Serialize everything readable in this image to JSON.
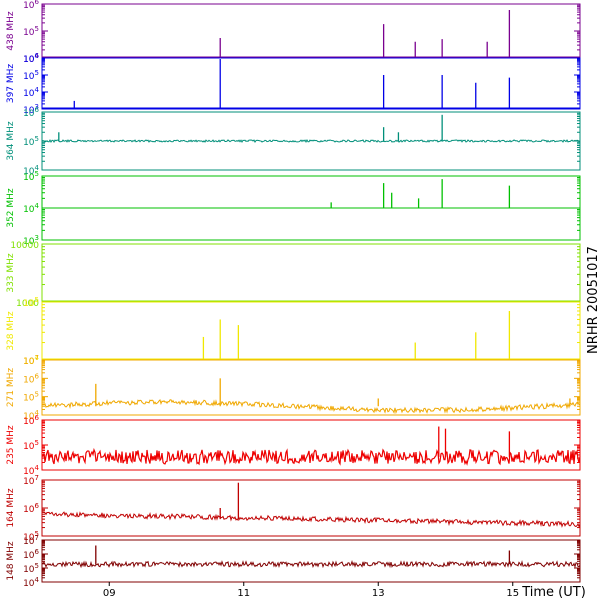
{
  "chart_data": {
    "type": "line",
    "title": "",
    "station_label": "NRHR 20051017",
    "xlabel": "Time (UT)",
    "x_ticks": [
      "09",
      "11",
      "13",
      "15"
    ],
    "x_tick_values": [
      9,
      11,
      13,
      15
    ],
    "xlim": [
      8.0,
      16.0
    ],
    "y_scale": "log",
    "panels": [
      {
        "name": "438 MHz",
        "color": "#7a008f",
        "tick_labels": [
          "10^4",
          "10^5",
          "10^6"
        ],
        "ylim": [
          10000,
          1000000
        ],
        "baseline": 10000,
        "spikes": [
          [
            10.65,
            55000
          ],
          [
            13.08,
            180000
          ],
          [
            13.55,
            40000
          ],
          [
            13.95,
            50000
          ],
          [
            14.62,
            40000
          ],
          [
            14.95,
            600000
          ]
        ]
      },
      {
        "name": "397 MHz",
        "color": "#0000e6",
        "tick_labels": [
          "10^3",
          "10^4",
          "10^5",
          "10^6"
        ],
        "ylim": [
          1000,
          1000000
        ],
        "baseline": 1000,
        "spikes": [
          [
            8.48,
            3000
          ],
          [
            10.65,
            900000
          ],
          [
            13.08,
            100000
          ],
          [
            13.95,
            100000
          ],
          [
            14.45,
            35000
          ],
          [
            14.95,
            70000
          ]
        ]
      },
      {
        "name": "364 MHz",
        "color": "#008f7a",
        "tick_labels": [
          "10^4",
          "10^5",
          "10^6"
        ],
        "ylim": [
          10000,
          1000000
        ],
        "baseline": 100000,
        "spikes": [
          [
            8.25,
            200000
          ],
          [
            13.08,
            300000
          ],
          [
            13.3,
            200000
          ],
          [
            13.95,
            800000
          ]
        ]
      },
      {
        "name": "352 MHz",
        "color": "#00c000",
        "tick_labels": [
          "10^3",
          "10^4",
          "10^5"
        ],
        "ylim": [
          1000,
          100000
        ],
        "baseline": 10000,
        "spikes": [
          [
            12.3,
            15000
          ],
          [
            13.08,
            60000
          ],
          [
            13.2,
            30000
          ],
          [
            13.6,
            20000
          ],
          [
            13.95,
            80000
          ],
          [
            14.95,
            50000
          ]
        ]
      },
      {
        "name": "333 MHz",
        "color": "#80e000",
        "tick_labels": [
          "1000",
          "10000"
        ],
        "ylim": [
          100,
          10000
        ],
        "baseline": 100,
        "spikes": []
      },
      {
        "name": "328 MHz",
        "color": "#f0e800",
        "tick_labels": [
          "10^4",
          "10^5"
        ],
        "ylim": [
          10000,
          100000
        ],
        "baseline": 10000,
        "spikes": [
          [
            10.4,
            25000
          ],
          [
            10.65,
            50000
          ],
          [
            10.92,
            40000
          ],
          [
            13.55,
            20000
          ],
          [
            14.45,
            30000
          ],
          [
            14.95,
            70000
          ]
        ]
      },
      {
        "name": "271 MHz",
        "color": "#f0a800",
        "tick_labels": [
          "10^4",
          "10^5",
          "10^6",
          "10^7"
        ],
        "ylim": [
          10000,
          10000000
        ],
        "baseline": 30000,
        "spikes": [
          [
            8.8,
            500000
          ],
          [
            10.65,
            1000000
          ],
          [
            13.0,
            80000
          ],
          [
            15.85,
            80000
          ]
        ]
      },
      {
        "name": "235 MHz",
        "color": "#ee0000",
        "tick_labels": [
          "10^4",
          "10^5",
          "10^6"
        ],
        "ylim": [
          5000,
          1000000
        ],
        "baseline": 20000,
        "spikes": [
          [
            13.9,
            500000
          ],
          [
            14.0,
            400000
          ],
          [
            14.95,
            300000
          ]
        ]
      },
      {
        "name": "164 MHz",
        "color": "#c00000",
        "tick_labels": [
          "10^5",
          "10^6",
          "10^7"
        ],
        "ylim": [
          100000,
          10000000
        ],
        "baseline": 400000,
        "spikes": [
          [
            10.92,
            8000000
          ],
          [
            10.65,
            1000000
          ]
        ]
      },
      {
        "name": "148 MHz",
        "color": "#800000",
        "tick_labels": [
          "10^4",
          "10^5",
          "10^6",
          "10^7"
        ],
        "ylim": [
          1000,
          10000000
        ],
        "baseline": 50000,
        "spikes": [
          [
            8.8,
            3000000
          ],
          [
            14.95,
            1000000
          ]
        ]
      }
    ],
    "grid": false,
    "legend": "none"
  }
}
